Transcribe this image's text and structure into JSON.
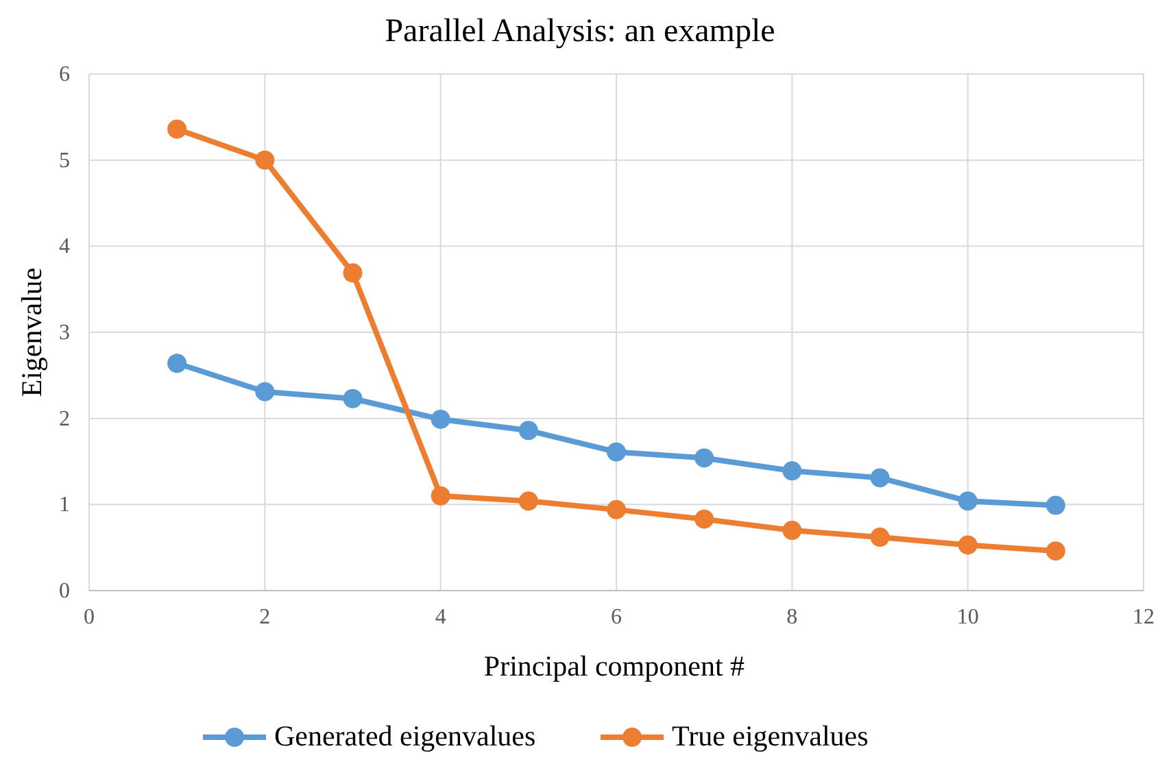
{
  "chart_data": {
    "type": "line",
    "title": "Parallel Analysis: an example",
    "xlabel": "Principal component #",
    "ylabel": "Eigenvalue",
    "x": [
      1,
      2,
      3,
      4,
      5,
      6,
      7,
      8,
      9,
      10,
      11
    ],
    "series": [
      {
        "name": "Generated eigenvalues",
        "color": "#5b9bd5",
        "values": [
          2.64,
          2.31,
          2.23,
          1.99,
          1.86,
          1.61,
          1.54,
          1.39,
          1.31,
          1.04,
          0.99
        ]
      },
      {
        "name": "True eigenvalues",
        "color": "#ed7d31",
        "values": [
          5.36,
          5.0,
          3.69,
          1.1,
          1.04,
          0.94,
          0.83,
          0.7,
          0.62,
          0.53,
          0.46
        ]
      }
    ],
    "xlim": [
      0,
      12
    ],
    "xticks": [
      0,
      2,
      4,
      6,
      8,
      10,
      12
    ],
    "ylim": [
      0,
      6
    ],
    "yticks": [
      0,
      1,
      2,
      3,
      4,
      5,
      6
    ],
    "grid": true,
    "legend": "bottom",
    "marker": "circle",
    "line_style": "solid"
  }
}
